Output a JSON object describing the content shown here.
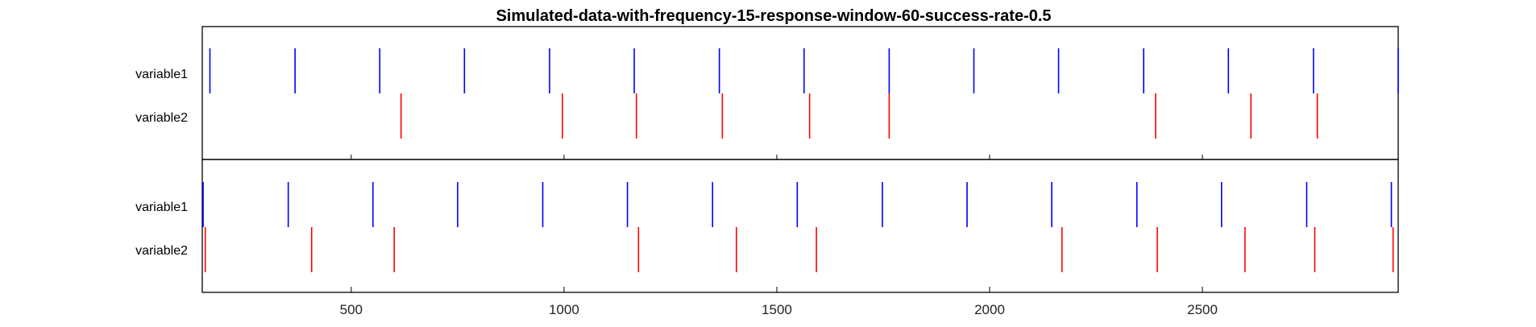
{
  "chart_data": {
    "type": "event-raster",
    "title": "Simulated-data-with-frequency-15-response-window-60-success-rate-0.5",
    "xlim": [
      150,
      2960
    ],
    "xticks": [
      500,
      1000,
      1500,
      2000,
      2500
    ],
    "xtick_labels": [
      "500",
      "1000",
      "1500",
      "2000",
      "2500"
    ],
    "colors": {
      "variable1": "#0000ff",
      "variable2": "#ff0000"
    },
    "panels": [
      {
        "rows": [
          {
            "label": "variable1",
            "events": [
              168,
              368,
              567,
              766,
              966,
              1165,
              1365,
              1564,
              1764,
              1963,
              2162,
              2362,
              2561,
              2761,
              2960
            ]
          },
          {
            "label": "variable2",
            "events": [
              617,
              996,
              1170,
              1372,
              1577,
              1764,
              2390,
              2614,
              2770
            ]
          }
        ]
      },
      {
        "rows": [
          {
            "label": "variable1",
            "events": [
              152,
              352,
              551,
              750,
              950,
              1149,
              1349,
              1548,
              1748,
              1947,
              2146,
              2346,
              2545,
              2745,
              2944
            ]
          },
          {
            "label": "variable2",
            "events": [
              157,
              407,
              601,
              1175,
              1405,
              1593,
              2170,
              2394,
              2600,
              2764,
              2948
            ]
          }
        ]
      }
    ]
  }
}
